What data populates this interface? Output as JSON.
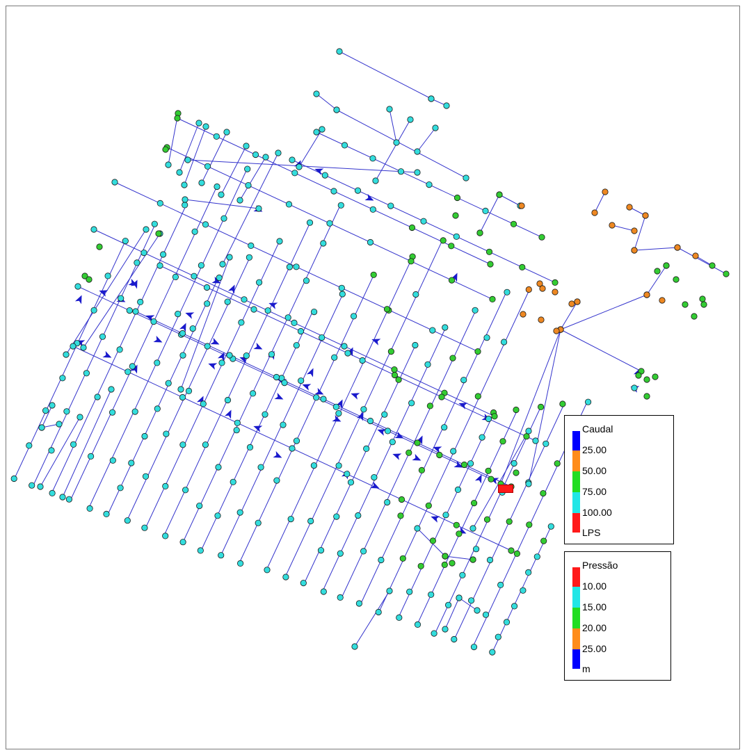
{
  "legends": {
    "caudal": {
      "title": "Caudal",
      "ticks": [
        "25.00",
        "50.00",
        "75.00",
        "100.00"
      ],
      "unit": "LPS",
      "colors": [
        "#0000ff",
        "#ff8c1a",
        "#22dd22",
        "#22e6e6",
        "#ff1a1a"
      ]
    },
    "pressao": {
      "title": "Pressão",
      "ticks": [
        "10.00",
        "15.00",
        "20.00",
        "25.00"
      ],
      "unit": "m",
      "colors": [
        "#ff1a1a",
        "#22e6e6",
        "#22dd22",
        "#ff8c1a",
        "#0000ff"
      ]
    }
  },
  "colors": {
    "pipe": "#3333cc",
    "node_cyan": "#33dddd",
    "node_green": "#33cc33",
    "node_orange": "#ee8822",
    "node_outline": "#1a1a1a",
    "arrow": "#1a1acc",
    "tank": "#ff1a1a"
  }
}
